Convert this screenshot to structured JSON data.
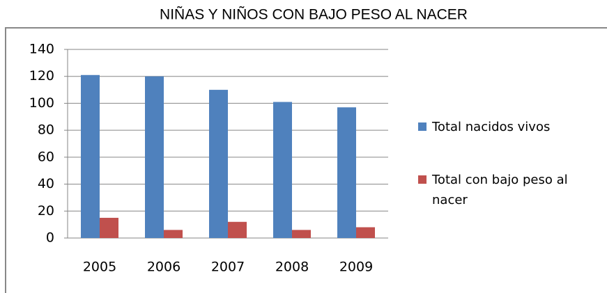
{
  "chart_data": {
    "type": "bar",
    "title": "NIÑAS Y NIÑOS CON BAJO PESO AL NACER",
    "categories": [
      "2005",
      "2006",
      "2007",
      "2008",
      "2009"
    ],
    "series": [
      {
        "name": "Total nacidos vivos",
        "color": "#4f81bd",
        "values": [
          121,
          120,
          110,
          101,
          97
        ]
      },
      {
        "name": "Total con bajo peso al nacer",
        "color": "#c0504d",
        "values": [
          15,
          6,
          12,
          6,
          8
        ]
      }
    ],
    "ylim": [
      0,
      140
    ],
    "yticks": [
      0,
      20,
      40,
      60,
      80,
      100,
      120,
      140
    ],
    "grid": true,
    "legend": "right"
  }
}
